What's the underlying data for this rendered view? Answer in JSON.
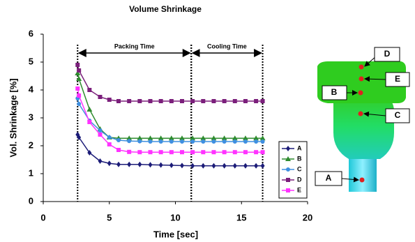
{
  "chart_data": {
    "type": "line",
    "title": "Volume Shrinkage",
    "x_label": "Time [sec]",
    "y_label": "Vol. Shrinkage [%]",
    "xlim": [
      0,
      20
    ],
    "xticks": [
      0,
      5,
      10,
      15,
      20
    ],
    "ylim": [
      0,
      6
    ],
    "yticks": [
      0,
      1,
      2,
      3,
      4,
      5,
      6
    ],
    "grid": false,
    "legend": "right",
    "phases": [
      {
        "label": "Packing Time",
        "start": 2.6,
        "end": 11.2
      },
      {
        "label": "Cooling Time",
        "start": 11.2,
        "end": 16.6
      }
    ],
    "x": [
      2.6,
      2.7,
      3.5,
      4.3,
      5.0,
      5.7,
      6.5,
      7.3,
      8.1,
      8.9,
      9.7,
      10.5,
      11.3,
      12.1,
      12.9,
      13.7,
      14.5,
      15.3,
      16.1,
      16.6
    ],
    "series": [
      {
        "name": "A",
        "color": "#1c1c78",
        "marker": "diamond",
        "values": [
          2.4,
          2.3,
          1.75,
          1.45,
          1.37,
          1.33,
          1.33,
          1.33,
          1.32,
          1.31,
          1.3,
          1.29,
          1.28,
          1.28,
          1.28,
          1.28,
          1.28,
          1.28,
          1.28,
          1.28
        ]
      },
      {
        "name": "B",
        "color": "#2e8b2e",
        "marker": "triangle",
        "values": [
          4.6,
          4.4,
          3.3,
          2.6,
          2.3,
          2.27,
          2.27,
          2.27,
          2.27,
          2.27,
          2.27,
          2.27,
          2.27,
          2.27,
          2.27,
          2.27,
          2.27,
          2.27,
          2.27,
          2.27
        ]
      },
      {
        "name": "C",
        "color": "#3f8fe0",
        "marker": "circle",
        "values": [
          3.7,
          3.5,
          2.9,
          2.55,
          2.3,
          2.2,
          2.17,
          2.16,
          2.15,
          2.15,
          2.15,
          2.15,
          2.15,
          2.15,
          2.15,
          2.15,
          2.15,
          2.15,
          2.15,
          2.15
        ]
      },
      {
        "name": "D",
        "color": "#7b1f7b",
        "marker": "square",
        "values": [
          4.9,
          4.7,
          4.0,
          3.75,
          3.65,
          3.6,
          3.6,
          3.6,
          3.6,
          3.6,
          3.6,
          3.6,
          3.6,
          3.6,
          3.6,
          3.6,
          3.6,
          3.6,
          3.6,
          3.6
        ]
      },
      {
        "name": "E",
        "color": "#ff33ff",
        "marker": "square",
        "values": [
          4.05,
          3.8,
          2.85,
          2.4,
          2.05,
          1.85,
          1.78,
          1.77,
          1.77,
          1.77,
          1.77,
          1.77,
          1.77,
          1.77,
          1.77,
          1.77,
          1.77,
          1.77,
          1.77,
          1.77
        ]
      }
    ]
  },
  "part_labels": [
    "D",
    "E",
    "B",
    "C",
    "A"
  ]
}
